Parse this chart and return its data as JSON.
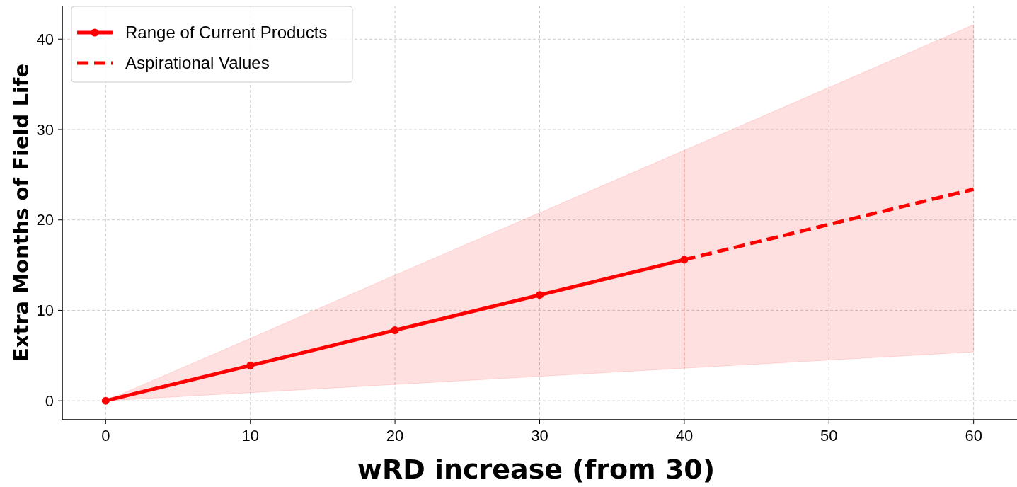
{
  "chart_data": {
    "type": "line",
    "xlabel": "wRD increase (from 30)",
    "ylabel": "Extra Months of Field Life",
    "xlim": [
      -3,
      63
    ],
    "ylim": [
      -2.1,
      43.7
    ],
    "xticks": [
      0,
      10,
      20,
      30,
      40,
      50,
      60
    ],
    "yticks": [
      0,
      10,
      20,
      30,
      40
    ],
    "grid": true,
    "legend": "top left",
    "series": [
      {
        "name": "Range of Current Products",
        "color": "#ff0000",
        "x": [
          0,
          10,
          20,
          30,
          40
        ],
        "values": [
          0,
          3.9,
          7.8,
          11.7,
          15.6
        ],
        "lower": [
          0,
          0.9,
          1.8,
          2.7,
          3.6
        ],
        "upper": [
          0,
          6.9,
          13.9,
          20.8,
          27.7
        ],
        "marker": "circle",
        "line_style": "solid"
      },
      {
        "name": "Aspirational Values",
        "color": "#ff0000",
        "x": [
          40,
          60
        ],
        "values": [
          15.6,
          23.4
        ],
        "lower": [
          3.6,
          5.4
        ],
        "upper": [
          27.7,
          41.6
        ],
        "marker": "none",
        "line_style": "dashed"
      }
    ]
  }
}
